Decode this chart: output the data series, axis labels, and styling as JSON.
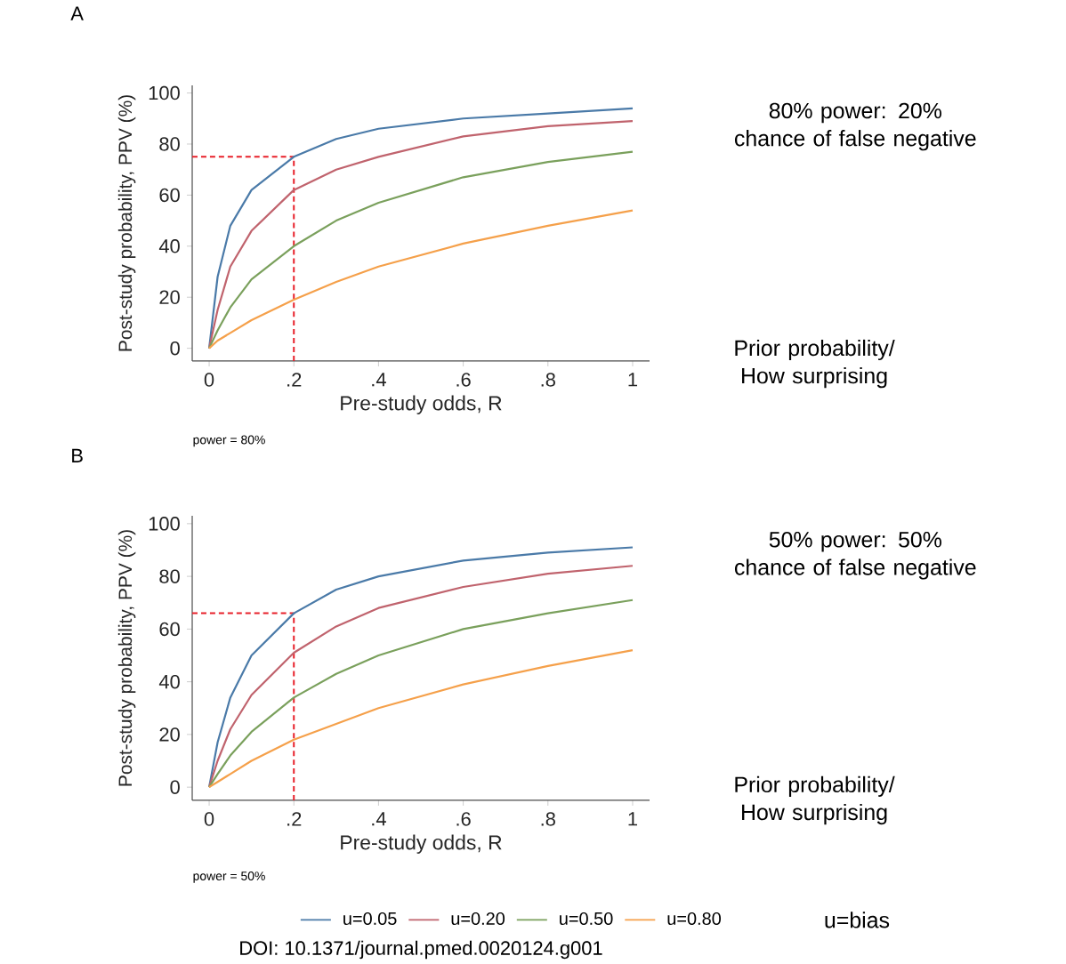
{
  "chart_data": [
    {
      "type": "line",
      "title": "A",
      "xlabel": "Pre-study odds, R",
      "ylabel": "Post-study probability, PPV (%)",
      "x": [
        0,
        0.02,
        0.05,
        0.1,
        0.2,
        0.3,
        0.4,
        0.6,
        0.8,
        1
      ],
      "series": [
        {
          "color": "#4a7aa8",
          "values": [
            0,
            28,
            48,
            62,
            75,
            82,
            86,
            90,
            92,
            94
          ]
        },
        {
          "color": "#c0636d",
          "values": [
            0,
            15,
            32,
            46,
            62,
            70,
            75,
            83,
            87,
            89
          ]
        },
        {
          "color": "#7aa05c",
          "values": [
            0,
            7,
            16,
            27,
            40,
            50,
            57,
            67,
            73,
            77
          ]
        },
        {
          "color": "#f5a04a",
          "values": [
            0,
            3,
            6,
            11,
            19,
            26,
            32,
            41,
            48,
            54
          ]
        }
      ],
      "xlim": [
        -0.04,
        1.04
      ],
      "ylim": [
        -5,
        103
      ],
      "xticks": [
        0,
        {
          "value": 0.2,
          "label": ".2"
        },
        {
          "value": 0.4,
          "label": ".4"
        },
        {
          "value": 0.6,
          "label": ".6"
        },
        {
          "value": 0.8,
          "label": ".8"
        },
        1
      ],
      "yticks": [
        0,
        20,
        40,
        60,
        80,
        100
      ],
      "ref_lines": [
        {
          "axis": "x",
          "value": 0.2,
          "color": "#e8202a",
          "line_style": "dashed"
        },
        {
          "axis": "y",
          "value": 75,
          "color": "#e8202a",
          "line_style": "dashed"
        }
      ],
      "annotations": [
        "80% power: 20% chance of false negative",
        "Prior probability/ How surprising",
        "power = 80%"
      ]
    },
    {
      "type": "line",
      "title": "B",
      "xlabel": "Pre-study odds, R",
      "ylabel": "Post-study probability, PPV (%)",
      "x": [
        0,
        0.02,
        0.05,
        0.1,
        0.2,
        0.3,
        0.4,
        0.6,
        0.8,
        1
      ],
      "series": [
        {
          "name": "u=0.05",
          "color": "#4a7aa8",
          "values": [
            0,
            17,
            34,
            50,
            66,
            75,
            80,
            86,
            89,
            91
          ]
        },
        {
          "name": "u=0.20",
          "color": "#c0636d",
          "values": [
            0,
            10,
            22,
            35,
            51,
            61,
            68,
            76,
            81,
            84
          ]
        },
        {
          "name": "u=0.50",
          "color": "#7aa05c",
          "values": [
            0,
            5,
            12,
            21,
            34,
            43,
            50,
            60,
            66,
            71
          ]
        },
        {
          "name": "u=0.80",
          "color": "#f5a04a",
          "values": [
            0,
            2,
            5,
            10,
            18,
            24,
            30,
            39,
            46,
            52
          ]
        }
      ],
      "xlim": [
        -0.04,
        1.04
      ],
      "ylim": [
        -5,
        103
      ],
      "xticks": [
        0,
        {
          "value": 0.2,
          "label": ".2"
        },
        {
          "value": 0.4,
          "label": ".4"
        },
        {
          "value": 0.6,
          "label": ".6"
        },
        {
          "value": 0.8,
          "label": ".8"
        },
        1
      ],
      "yticks": [
        0,
        20,
        40,
        60,
        80,
        100
      ],
      "ref_lines": [
        {
          "axis": "x",
          "value": 0.2,
          "color": "#e8202a",
          "line_style": "dashed"
        },
        {
          "axis": "y",
          "value": 66,
          "color": "#e8202a",
          "line_style": "dashed"
        }
      ],
      "legend": "bottom",
      "annotations": [
        "50% power: 50% chance of false negative",
        "Prior probability/ How surprising",
        "power = 50%",
        "u=bias",
        "DOI: 10.1371/journal.pmed.0020124.g001"
      ]
    }
  ]
}
